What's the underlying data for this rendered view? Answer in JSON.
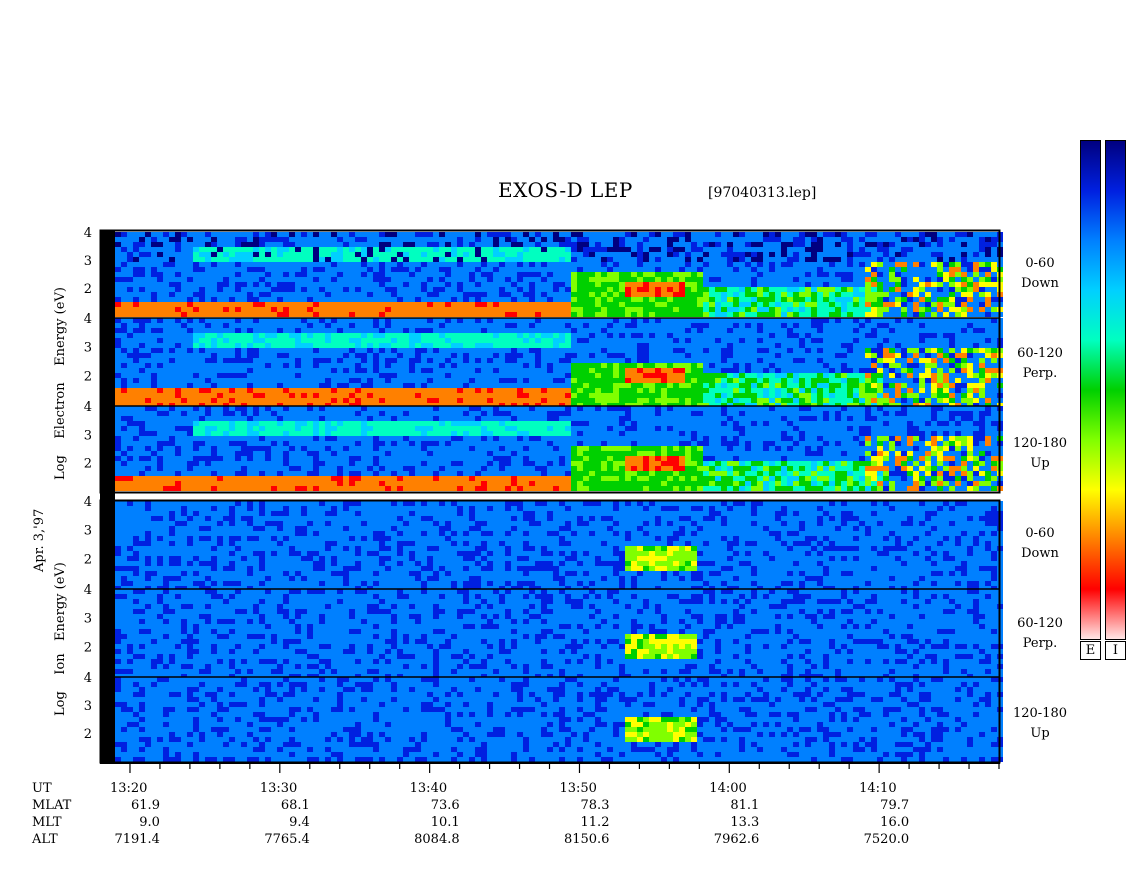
{
  "header": {
    "title": "EXOS-D LEP",
    "file": "[97040313.lep]"
  },
  "date_label": "Apr. 3,'97",
  "electron_label": [
    "Log",
    "Electron",
    "Energy",
    "(eV)"
  ],
  "ion_label": [
    "Log",
    "Ion",
    "Energy",
    "(eV)"
  ],
  "panels": [
    {
      "pitch": "0-60",
      "dir": "Down",
      "species": "electron"
    },
    {
      "pitch": "60-120",
      "dir": "Perp.",
      "species": "electron"
    },
    {
      "pitch": "120-180",
      "dir": "Up",
      "species": "electron"
    },
    {
      "pitch": "0-60",
      "dir": "Down",
      "species": "ion"
    },
    {
      "pitch": "60-120",
      "dir": "Perp.",
      "species": "ion"
    },
    {
      "pitch": "120-180",
      "dir": "Up",
      "species": "ion"
    }
  ],
  "colorbar_labels": [
    "E",
    "I"
  ],
  "colors": {
    "colormap": [
      "#ffe6e6",
      "#ff0000",
      "#ff8000",
      "#ffff00",
      "#80ff00",
      "#00d000",
      "#00ffc0",
      "#00d0ff",
      "#0080ff",
      "#0020e0",
      "#000080"
    ]
  },
  "ephemeris": {
    "row_labels": [
      "UT",
      "MLAT",
      "MLT",
      "ALT"
    ],
    "columns": [
      {
        "ut": "13:20",
        "mlat": "61.9",
        "mlt": "9.0",
        "alt": "7191.4"
      },
      {
        "ut": "13:30",
        "mlat": "68.1",
        "mlt": "9.4",
        "alt": "7765.4"
      },
      {
        "ut": "13:40",
        "mlat": "73.6",
        "mlt": "10.1",
        "alt": "8084.8"
      },
      {
        "ut": "13:50",
        "mlat": "78.3",
        "mlt": "11.2",
        "alt": "8150.6"
      },
      {
        "ut": "14:00",
        "mlat": "81.1",
        "mlt": "13.3",
        "alt": "7962.6"
      },
      {
        "ut": "14:10",
        "mlat": "79.7",
        "mlt": "16.0",
        "alt": "7520.0"
      }
    ]
  },
  "chart_data": {
    "type": "heatmap",
    "title": "EXOS-D LEP",
    "x_axis": {
      "label": "UT",
      "start": "13:19",
      "end": "14:18",
      "major_ticks": [
        "13:20",
        "13:30",
        "13:40",
        "13:50",
        "14:00",
        "14:10"
      ],
      "minor_tick_step_min": 2
    },
    "y_axis": {
      "label": "Log Energy (eV)",
      "range": [
        1,
        4
      ],
      "ticks": [
        2,
        3,
        4
      ]
    },
    "colorbar": "blue (low) to red/white (high)",
    "features": {
      "electron_low_energy_band": {
        "from": "13:19",
        "to": "13:49",
        "log_energy": 1.5
      },
      "electron_diffuse_band": {
        "from": "13:24",
        "to": "13:49",
        "log_energy_range": [
          3.0,
          3.6
        ]
      },
      "electron_burst": {
        "from": "13:53",
        "to": "13:57",
        "log_energy_range": [
          1.8,
          2.3
        ]
      },
      "electron_spikes": {
        "from": "14:09",
        "to": "14:18"
      },
      "ion_burst": {
        "from": "13:53",
        "to": "13:57",
        "log_energy_range": [
          1.8,
          2.5
        ]
      }
    }
  }
}
